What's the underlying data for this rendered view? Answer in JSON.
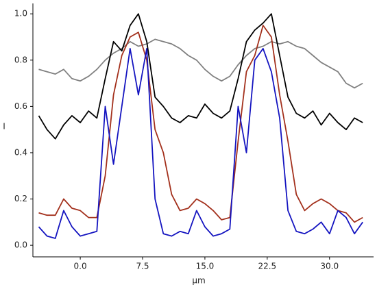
{
  "chart_data": {
    "type": "line",
    "x_label": "μm",
    "y_label": "I",
    "x": [
      -5,
      -4,
      -3,
      -2,
      -1,
      0,
      1,
      2,
      3,
      4,
      5,
      6,
      7,
      8,
      9,
      10,
      11,
      12,
      13,
      14,
      15,
      16,
      17,
      18,
      19,
      20,
      21,
      22,
      23,
      24,
      25,
      26,
      27,
      28,
      29,
      30,
      31,
      32,
      33,
      34
    ],
    "series": [
      {
        "color": "#808080",
        "values": [
          0.76,
          0.75,
          0.74,
          0.76,
          0.72,
          0.71,
          0.73,
          0.76,
          0.8,
          0.83,
          0.85,
          0.88,
          0.86,
          0.87,
          0.89,
          0.88,
          0.87,
          0.85,
          0.82,
          0.8,
          0.76,
          0.73,
          0.71,
          0.73,
          0.78,
          0.82,
          0.85,
          0.86,
          0.88,
          0.87,
          0.88,
          0.86,
          0.85,
          0.82,
          0.79,
          0.77,
          0.75,
          0.7,
          0.68,
          0.7
        ]
      },
      {
        "color": "#000000",
        "values": [
          0.56,
          0.5,
          0.46,
          0.52,
          0.56,
          0.53,
          0.58,
          0.55,
          0.72,
          0.88,
          0.84,
          0.95,
          1.0,
          0.88,
          0.64,
          0.6,
          0.55,
          0.53,
          0.56,
          0.55,
          0.61,
          0.57,
          0.55,
          0.58,
          0.72,
          0.88,
          0.93,
          0.96,
          1.0,
          0.82,
          0.64,
          0.57,
          0.55,
          0.58,
          0.52,
          0.57,
          0.53,
          0.5,
          0.55,
          0.53
        ]
      },
      {
        "color": "#a3301c",
        "values": [
          0.14,
          0.13,
          0.13,
          0.2,
          0.16,
          0.15,
          0.12,
          0.12,
          0.3,
          0.65,
          0.82,
          0.9,
          0.92,
          0.8,
          0.5,
          0.4,
          0.22,
          0.15,
          0.16,
          0.2,
          0.18,
          0.15,
          0.11,
          0.12,
          0.45,
          0.75,
          0.82,
          0.95,
          0.9,
          0.65,
          0.45,
          0.22,
          0.15,
          0.18,
          0.2,
          0.18,
          0.15,
          0.14,
          0.1,
          0.12
        ]
      },
      {
        "color": "#1414c0",
        "values": [
          0.08,
          0.04,
          0.03,
          0.15,
          0.08,
          0.04,
          0.05,
          0.06,
          0.6,
          0.35,
          0.6,
          0.85,
          0.65,
          0.85,
          0.2,
          0.05,
          0.04,
          0.06,
          0.05,
          0.15,
          0.08,
          0.04,
          0.05,
          0.07,
          0.6,
          0.4,
          0.8,
          0.85,
          0.75,
          0.55,
          0.15,
          0.06,
          0.05,
          0.07,
          0.1,
          0.05,
          0.15,
          0.12,
          0.05,
          0.1
        ]
      }
    ],
    "xlim": [
      -5.7,
      35.3
    ],
    "ylim": [
      -0.05,
      1.045
    ],
    "xticks": [
      {
        "value": 0,
        "label": "0.0"
      },
      {
        "value": 7.5,
        "label": "7.5"
      },
      {
        "value": 15,
        "label": "15.0"
      },
      {
        "value": 22.5,
        "label": "22.5"
      },
      {
        "value": 30,
        "label": "30.0"
      }
    ],
    "yticks": [
      {
        "value": 0,
        "label": "0.0"
      },
      {
        "value": 0.2,
        "label": "0.2"
      },
      {
        "value": 0.4,
        "label": "0.4"
      },
      {
        "value": 0.6,
        "label": "0.6"
      },
      {
        "value": 0.8,
        "label": "0.8"
      },
      {
        "value": 1,
        "label": "1.0"
      }
    ]
  }
}
